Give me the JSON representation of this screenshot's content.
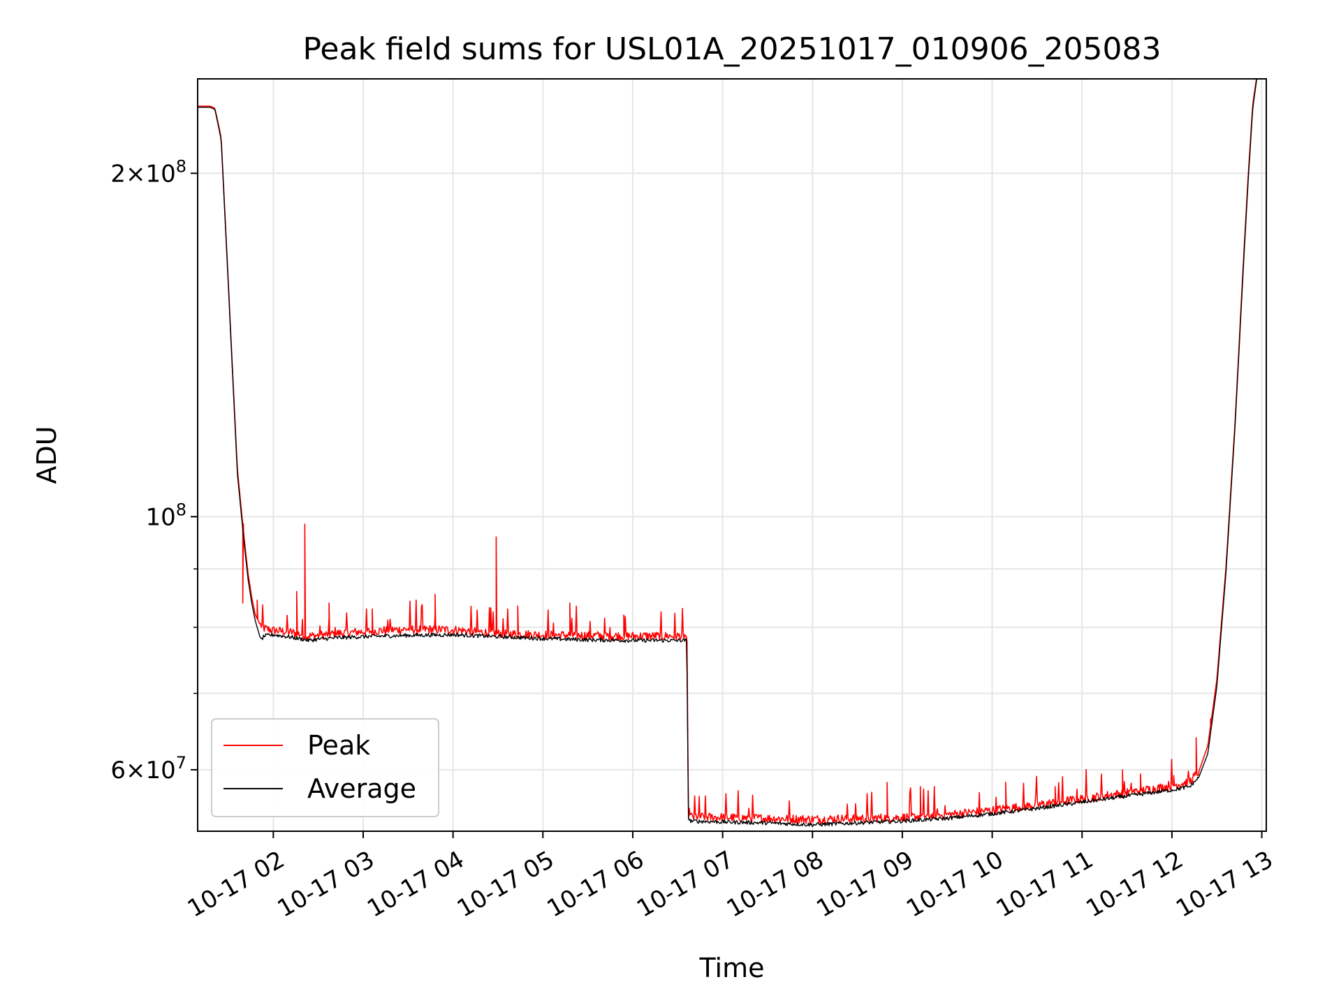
{
  "chart_data": {
    "type": "line",
    "title": "Peak field sums for USL01A_20251017_010906_205083",
    "xlabel": "Time",
    "ylabel": "ADU",
    "yscale": "log",
    "xlim_hours": [
      1.158,
      13.05
    ],
    "ylim": [
      53000000,
      242000000
    ],
    "grid": true,
    "legend_position": "lower-left",
    "x_ticks": [
      {
        "hour": 2,
        "label": "10-17 02"
      },
      {
        "hour": 3,
        "label": "10-17 03"
      },
      {
        "hour": 4,
        "label": "10-17 04"
      },
      {
        "hour": 5,
        "label": "10-17 05"
      },
      {
        "hour": 6,
        "label": "10-17 06"
      },
      {
        "hour": 7,
        "label": "10-17 07"
      },
      {
        "hour": 8,
        "label": "10-17 08"
      },
      {
        "hour": 9,
        "label": "10-17 09"
      },
      {
        "hour": 10,
        "label": "10-17 10"
      },
      {
        "hour": 11,
        "label": "10-17 11"
      },
      {
        "hour": 12,
        "label": "10-17 12"
      },
      {
        "hour": 13,
        "label": "10-17 13"
      }
    ],
    "y_major_ticks": [
      {
        "value": 60000000,
        "mantissa": "6",
        "exponent": "7",
        "prefix": "6×10"
      },
      {
        "value": 100000000,
        "mantissa": "",
        "exponent": "8",
        "prefix": "10"
      },
      {
        "value": 200000000,
        "mantissa": "2",
        "exponent": "8",
        "prefix": "2×10"
      }
    ],
    "y_minor_ticks": [
      70000000,
      80000000,
      90000000
    ],
    "series": [
      {
        "name": "Peak",
        "color": "#ff0000",
        "x_hours": [
          1.16,
          1.3,
          1.35,
          1.42,
          1.5,
          1.6,
          1.68,
          1.72,
          1.76,
          1.8,
          1.85,
          1.9,
          2.0,
          2.2,
          2.4,
          2.5,
          2.7,
          3.0,
          3.5,
          4.0,
          4.5,
          5.0,
          5.5,
          6.0,
          6.25,
          6.6,
          6.62,
          6.64,
          7.0,
          7.5,
          8.0,
          8.5,
          9.0,
          9.5,
          10.0,
          10.5,
          11.0,
          11.5,
          12.0,
          12.2,
          12.3,
          12.4,
          12.5,
          12.6,
          12.7,
          12.8,
          12.85,
          12.9,
          12.95,
          13.05
        ],
        "values": [
          229000000,
          229000000,
          228000000,
          215000000,
          160000000,
          110000000,
          95000000,
          89000000,
          85000000,
          82000000,
          80500000,
          79800000,
          79500000,
          79200000,
          78600000,
          78700000,
          79000000,
          79300000,
          79700000,
          79600000,
          79000000,
          78800000,
          78700000,
          78600000,
          78600000,
          78600000,
          54800000,
          54600000,
          54500000,
          54400000,
          54300000,
          54400000,
          54500000,
          54800000,
          55300000,
          55900000,
          56600000,
          57300000,
          58100000,
          58600000,
          59800000,
          63000000,
          72000000,
          90000000,
          120000000,
          170000000,
          200000000,
          230000000,
          245000000,
          245000000
        ],
        "spikes": [
          {
            "hour": 1.66,
            "value": 84000000
          },
          {
            "hour": 1.82,
            "value": 84500000
          },
          {
            "hour": 2.26,
            "value": 86000000
          },
          {
            "hour": 2.35,
            "value": 98500000
          },
          {
            "hour": 2.62,
            "value": 84000000
          },
          {
            "hour": 3.1,
            "value": 83000000
          },
          {
            "hour": 3.8,
            "value": 85500000
          },
          {
            "hour": 4.48,
            "value": 96000000
          },
          {
            "hour": 4.72,
            "value": 83500000
          },
          {
            "hour": 5.3,
            "value": 84000000
          },
          {
            "hour": 5.9,
            "value": 82000000
          },
          {
            "hour": 8.83,
            "value": 58500000
          },
          {
            "hour": 9.2,
            "value": 58000000
          },
          {
            "hour": 10.15,
            "value": 58500000
          },
          {
            "hour": 10.7,
            "value": 58000000
          },
          {
            "hour": 11.45,
            "value": 60000000
          },
          {
            "hour": 11.65,
            "value": 59500000
          },
          {
            "hour": 12.02,
            "value": 59300000
          },
          {
            "hour": 12.27,
            "value": 64000000
          },
          {
            "hour": 12.43,
            "value": 66500000
          }
        ]
      },
      {
        "name": "Average",
        "color": "#000000",
        "x_hours": [
          1.16,
          1.3,
          1.35,
          1.42,
          1.5,
          1.6,
          1.68,
          1.72,
          1.76,
          1.8,
          1.84,
          1.86,
          1.9,
          2.0,
          2.2,
          2.4,
          2.5,
          2.7,
          3.0,
          3.5,
          4.0,
          4.5,
          5.0,
          5.5,
          6.0,
          6.25,
          6.6,
          6.62,
          6.64,
          7.0,
          7.5,
          8.0,
          8.5,
          9.0,
          9.5,
          10.0,
          10.5,
          11.0,
          11.5,
          12.0,
          12.2,
          12.3,
          12.4,
          12.5,
          12.6,
          12.7,
          12.8,
          12.85,
          12.9,
          12.95,
          13.05
        ],
        "values": [
          228500000,
          228500000,
          227500000,
          214000000,
          159000000,
          109000000,
          94000000,
          88000000,
          84000000,
          81000000,
          79000000,
          77900000,
          78600000,
          78800000,
          78400000,
          77900000,
          78100000,
          78300000,
          78500000,
          78700000,
          78800000,
          78500000,
          78200000,
          78000000,
          77900000,
          77900000,
          77900000,
          54400000,
          54100000,
          54000000,
          53900000,
          53700000,
          53900000,
          54100000,
          54400000,
          54900000,
          55500000,
          56200000,
          56900000,
          57600000,
          58000000,
          59100000,
          62000000,
          71000000,
          89000000,
          119000000,
          168000000,
          198000000,
          228000000,
          244000000,
          244000000
        ]
      }
    ]
  }
}
